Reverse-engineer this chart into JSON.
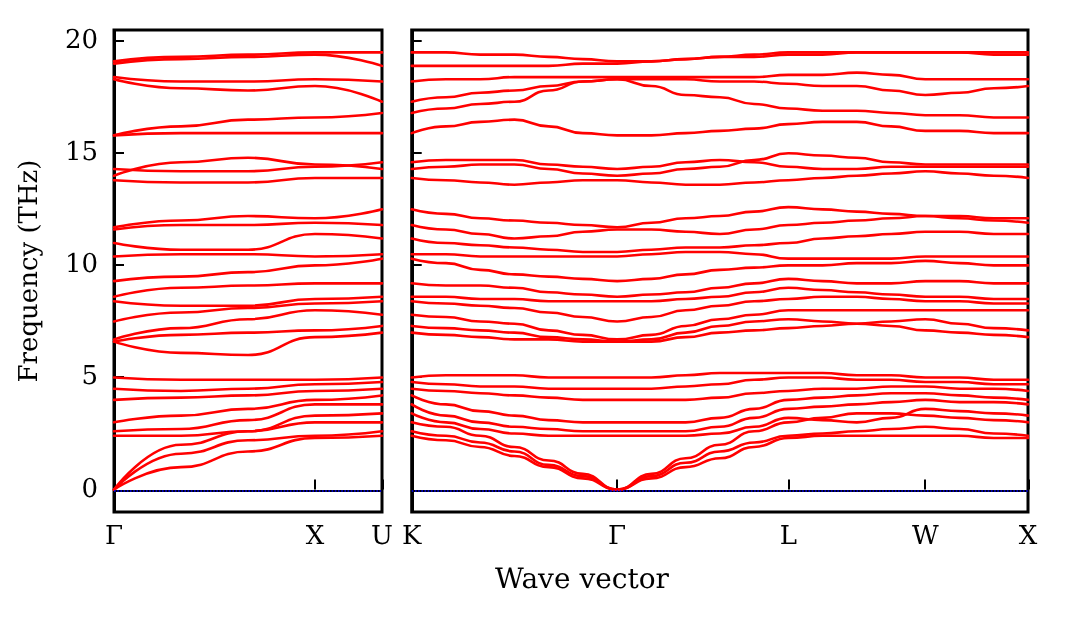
{
  "chart_data": [
    {
      "type": "line",
      "ylabel": "Frequency (THz)",
      "categories": [
        "Γ",
        null,
        null,
        "X",
        "U"
      ],
      "ylim": [
        -1,
        20.5
      ],
      "yticks": [
        0,
        5,
        10,
        15,
        20
      ],
      "grid": false,
      "marker": "none",
      "line_style": "solid",
      "ref_lines": [
        {
          "axis": "y",
          "value": 0,
          "color": "#0000ff",
          "line_style": "dotted"
        }
      ],
      "series": [
        {
          "color": "#ff0000",
          "values": [
            0,
            1.0,
            1.7,
            2.3,
            2.4
          ]
        },
        {
          "color": "#ff0000",
          "values": [
            0,
            1.6,
            2.2,
            2.4,
            2.6
          ]
        },
        {
          "color": "#ff0000",
          "values": [
            0,
            2.0,
            2.6,
            3.0,
            3.0
          ]
        },
        {
          "color": "#ff0000",
          "values": [
            2.4,
            2.4,
            2.6,
            3.3,
            3.4
          ]
        },
        {
          "color": "#ff0000",
          "values": [
            2.6,
            2.7,
            3.1,
            3.8,
            3.8
          ]
        },
        {
          "color": "#ff0000",
          "values": [
            3.0,
            3.3,
            3.6,
            4.0,
            4.2
          ]
        },
        {
          "color": "#ff0000",
          "values": [
            4.0,
            4.1,
            4.2,
            4.4,
            4.5
          ]
        },
        {
          "color": "#ff0000",
          "values": [
            4.5,
            4.4,
            4.5,
            4.7,
            4.8
          ]
        },
        {
          "color": "#ff0000",
          "values": [
            5.0,
            4.9,
            4.9,
            4.9,
            5.0
          ]
        },
        {
          "color": "#ff0000",
          "values": [
            6.6,
            6.1,
            6.0,
            6.8,
            7.0
          ]
        },
        {
          "color": "#ff0000",
          "values": [
            6.6,
            6.9,
            7.0,
            7.1,
            7.3
          ]
        },
        {
          "color": "#ff0000",
          "values": [
            6.7,
            7.2,
            7.6,
            8.0,
            7.8
          ]
        },
        {
          "color": "#ff0000",
          "values": [
            7.5,
            7.9,
            8.1,
            8.3,
            8.4
          ]
        },
        {
          "color": "#ff0000",
          "values": [
            8.4,
            8.2,
            8.2,
            8.5,
            8.6
          ]
        },
        {
          "color": "#ff0000",
          "values": [
            8.6,
            9.0,
            9.1,
            9.2,
            9.2
          ]
        },
        {
          "color": "#ff0000",
          "values": [
            9.3,
            9.5,
            9.7,
            10.0,
            10.3
          ]
        },
        {
          "color": "#ff0000",
          "values": [
            10.4,
            10.5,
            10.5,
            10.4,
            10.5
          ]
        },
        {
          "color": "#ff0000",
          "values": [
            11.0,
            10.7,
            10.7,
            11.4,
            11.2
          ]
        },
        {
          "color": "#ff0000",
          "values": [
            11.6,
            11.8,
            11.8,
            11.9,
            11.8
          ]
        },
        {
          "color": "#ff0000",
          "values": [
            11.7,
            12.0,
            12.2,
            12.1,
            12.5
          ]
        },
        {
          "color": "#ff0000",
          "values": [
            13.8,
            13.7,
            13.7,
            13.9,
            13.9
          ]
        },
        {
          "color": "#ff0000",
          "values": [
            14.0,
            14.6,
            14.8,
            14.5,
            14.3
          ]
        },
        {
          "color": "#ff0000",
          "values": [
            14.3,
            14.2,
            14.2,
            14.4,
            14.6
          ]
        },
        {
          "color": "#ff0000",
          "values": [
            15.8,
            15.9,
            15.9,
            15.9,
            15.9
          ]
        },
        {
          "color": "#ff0000",
          "values": [
            15.8,
            16.2,
            16.5,
            16.6,
            16.8
          ]
        },
        {
          "color": "#ff0000",
          "values": [
            18.3,
            17.9,
            17.8,
            18.0,
            17.3
          ]
        },
        {
          "color": "#ff0000",
          "values": [
            18.4,
            18.2,
            18.2,
            18.3,
            18.2
          ]
        },
        {
          "color": "#ff0000",
          "values": [
            19.0,
            19.2,
            19.3,
            19.4,
            18.9
          ]
        },
        {
          "color": "#ff0000",
          "values": [
            19.1,
            19.3,
            19.4,
            19.5,
            19.5
          ]
        }
      ]
    },
    {
      "type": "line",
      "xlabel": "Wave vector",
      "categories": [
        "K",
        null,
        null,
        null,
        null,
        null,
        "Γ",
        null,
        null,
        null,
        null,
        "L",
        null,
        null,
        null,
        "W",
        null,
        null,
        "X"
      ],
      "ylim": [
        -1,
        20.5
      ],
      "yticks": [
        0,
        5,
        10,
        15,
        20
      ],
      "tick_labels": "x",
      "grid": false,
      "marker": "none",
      "line_style": "solid",
      "ref_lines": [
        {
          "axis": "y",
          "value": 0,
          "color": "#0000ff",
          "line_style": "dotted"
        }
      ],
      "series": [
        {
          "color": "#ff0000",
          "values": [
            2.4,
            2.2,
            1.9,
            1.5,
            1.0,
            0.5,
            0,
            0.5,
            1.0,
            1.4,
            1.9,
            2.3,
            2.4,
            2.4,
            2.4,
            2.4,
            2.4,
            2.3,
            2.3
          ]
        },
        {
          "color": "#ff0000",
          "values": [
            2.6,
            2.4,
            2.1,
            1.7,
            1.1,
            0.6,
            0,
            0.6,
            1.2,
            1.7,
            2.1,
            2.4,
            2.5,
            2.6,
            2.7,
            2.8,
            2.7,
            2.5,
            2.4
          ]
        },
        {
          "color": "#ff0000",
          "values": [
            3.0,
            2.8,
            2.4,
            1.9,
            1.3,
            0.7,
            0,
            0.7,
            1.4,
            2.0,
            2.6,
            3.0,
            3.2,
            3.4,
            3.4,
            3.3,
            3.2,
            3.1,
            3.0
          ]
        },
        {
          "color": "#ff0000",
          "values": [
            3.4,
            3.0,
            2.7,
            2.5,
            2.4,
            2.4,
            2.4,
            2.4,
            2.4,
            2.5,
            2.8,
            3.2,
            3.1,
            3.0,
            3.2,
            3.6,
            3.5,
            3.4,
            3.3
          ]
        },
        {
          "color": "#ff0000",
          "values": [
            3.8,
            3.3,
            3.0,
            2.8,
            2.7,
            2.6,
            2.6,
            2.6,
            2.6,
            2.8,
            3.2,
            3.6,
            3.7,
            3.8,
            3.9,
            4.0,
            3.9,
            3.9,
            3.8
          ]
        },
        {
          "color": "#ff0000",
          "values": [
            4.2,
            3.8,
            3.5,
            3.3,
            3.1,
            3.0,
            3.0,
            3.0,
            3.0,
            3.2,
            3.6,
            4.0,
            4.1,
            4.2,
            4.3,
            4.3,
            4.2,
            4.1,
            4.0
          ]
        },
        {
          "color": "#ff0000",
          "values": [
            4.5,
            4.4,
            4.3,
            4.2,
            4.1,
            4.0,
            4.0,
            4.0,
            4.0,
            4.1,
            4.3,
            4.4,
            4.5,
            4.5,
            4.6,
            4.6,
            4.5,
            4.5,
            4.4
          ]
        },
        {
          "color": "#ff0000",
          "values": [
            4.8,
            4.7,
            4.6,
            4.6,
            4.5,
            4.5,
            4.5,
            4.5,
            4.6,
            4.7,
            4.9,
            5.0,
            5.0,
            4.9,
            4.9,
            4.8,
            4.8,
            4.7,
            4.7
          ]
        },
        {
          "color": "#ff0000",
          "values": [
            5.0,
            5.1,
            5.1,
            5.1,
            5.0,
            5.0,
            5.0,
            5.0,
            5.1,
            5.2,
            5.2,
            5.2,
            5.2,
            5.1,
            5.1,
            5.0,
            5.0,
            4.9,
            4.9
          ]
        },
        {
          "color": "#ff0000",
          "values": [
            7.0,
            6.9,
            6.8,
            6.7,
            6.7,
            6.6,
            6.6,
            6.6,
            6.8,
            7.0,
            7.1,
            7.2,
            7.3,
            7.4,
            7.3,
            7.1,
            7.0,
            6.9,
            6.8
          ]
        },
        {
          "color": "#ff0000",
          "values": [
            7.3,
            7.2,
            7.1,
            7.0,
            6.8,
            6.7,
            6.6,
            6.7,
            7.0,
            7.3,
            7.5,
            7.6,
            7.5,
            7.4,
            7.5,
            7.6,
            7.4,
            7.2,
            7.1
          ]
        },
        {
          "color": "#ff0000",
          "values": [
            7.8,
            7.7,
            7.5,
            7.4,
            7.1,
            6.9,
            6.7,
            6.9,
            7.3,
            7.6,
            7.8,
            8.0,
            8.0,
            8.0,
            8.0,
            8.0,
            8.0,
            8.0,
            8.0
          ]
        },
        {
          "color": "#ff0000",
          "values": [
            8.4,
            8.3,
            8.2,
            8.1,
            7.9,
            7.7,
            7.5,
            7.7,
            8.0,
            8.2,
            8.4,
            8.5,
            8.6,
            8.6,
            8.5,
            8.4,
            8.4,
            8.3,
            8.3
          ]
        },
        {
          "color": "#ff0000",
          "values": [
            8.6,
            8.6,
            8.5,
            8.5,
            8.4,
            8.4,
            8.4,
            8.4,
            8.5,
            8.6,
            8.8,
            9.0,
            8.9,
            8.8,
            8.7,
            8.6,
            8.6,
            8.5,
            8.5
          ]
        },
        {
          "color": "#ff0000",
          "values": [
            9.2,
            9.1,
            9.1,
            9.0,
            8.8,
            8.7,
            8.6,
            8.7,
            8.8,
            9.0,
            9.2,
            9.4,
            9.3,
            9.2,
            9.2,
            9.3,
            9.3,
            9.2,
            9.2
          ]
        },
        {
          "color": "#ff0000",
          "values": [
            10.3,
            10.1,
            9.8,
            9.6,
            9.5,
            9.4,
            9.3,
            9.4,
            9.6,
            9.8,
            9.9,
            10.0,
            10.0,
            10.1,
            10.1,
            10.2,
            10.1,
            10.0,
            10.0
          ]
        },
        {
          "color": "#ff0000",
          "values": [
            10.5,
            10.5,
            10.4,
            10.4,
            10.4,
            10.4,
            10.4,
            10.5,
            10.6,
            10.6,
            10.5,
            10.3,
            10.3,
            10.3,
            10.3,
            10.4,
            10.4,
            10.4,
            10.4
          ]
        },
        {
          "color": "#ff0000",
          "values": [
            11.2,
            11.0,
            10.9,
            10.8,
            10.7,
            10.6,
            10.6,
            10.7,
            10.8,
            10.8,
            10.9,
            11.0,
            11.2,
            11.3,
            11.4,
            11.5,
            11.5,
            11.4,
            11.4
          ]
        },
        {
          "color": "#ff0000",
          "values": [
            11.8,
            11.6,
            11.4,
            11.2,
            11.3,
            11.5,
            11.6,
            11.6,
            11.5,
            11.4,
            11.6,
            11.8,
            11.9,
            12.0,
            12.1,
            12.2,
            12.1,
            12.0,
            11.9
          ]
        },
        {
          "color": "#ff0000",
          "values": [
            12.5,
            12.3,
            12.1,
            12.0,
            11.9,
            11.8,
            11.7,
            11.9,
            12.1,
            12.2,
            12.4,
            12.6,
            12.5,
            12.4,
            12.3,
            12.2,
            12.2,
            12.1,
            12.1
          ]
        },
        {
          "color": "#ff0000",
          "values": [
            13.9,
            13.8,
            13.7,
            13.6,
            13.7,
            13.8,
            13.8,
            13.7,
            13.6,
            13.6,
            13.7,
            13.8,
            13.9,
            14.0,
            14.1,
            14.2,
            14.1,
            14.0,
            13.9
          ]
        },
        {
          "color": "#ff0000",
          "values": [
            14.3,
            14.4,
            14.5,
            14.5,
            14.3,
            14.1,
            14.0,
            14.1,
            14.3,
            14.4,
            14.7,
            15.0,
            14.9,
            14.8,
            14.6,
            14.5,
            14.5,
            14.5,
            14.5
          ]
        },
        {
          "color": "#ff0000",
          "values": [
            14.6,
            14.7,
            14.7,
            14.7,
            14.5,
            14.4,
            14.3,
            14.4,
            14.6,
            14.7,
            14.6,
            14.4,
            14.3,
            14.3,
            14.4,
            14.4,
            14.4,
            14.4,
            14.4
          ]
        },
        {
          "color": "#ff0000",
          "values": [
            15.9,
            16.2,
            16.4,
            16.5,
            16.2,
            15.9,
            15.8,
            15.8,
            15.9,
            16.0,
            16.1,
            16.3,
            16.4,
            16.4,
            16.2,
            16.0,
            16.0,
            15.9,
            15.9
          ]
        },
        {
          "color": "#ff0000",
          "values": [
            16.8,
            17.0,
            17.2,
            17.3,
            17.8,
            18.2,
            18.3,
            18.0,
            17.6,
            17.5,
            17.2,
            17.0,
            16.9,
            16.9,
            16.8,
            16.7,
            16.7,
            16.6,
            16.6
          ]
        },
        {
          "color": "#ff0000",
          "values": [
            17.3,
            17.5,
            17.7,
            17.8,
            18.0,
            18.2,
            18.3,
            18.3,
            18.3,
            18.2,
            18.2,
            18.1,
            18.0,
            18.0,
            17.8,
            17.6,
            17.7,
            17.9,
            18.0
          ]
        },
        {
          "color": "#ff0000",
          "values": [
            18.2,
            18.3,
            18.3,
            18.4,
            18.4,
            18.4,
            18.4,
            18.4,
            18.4,
            18.4,
            18.4,
            18.5,
            18.5,
            18.6,
            18.5,
            18.3,
            18.3,
            18.3,
            18.3
          ]
        },
        {
          "color": "#ff0000",
          "values": [
            18.9,
            18.9,
            18.9,
            18.9,
            18.9,
            19.0,
            19.0,
            19.1,
            19.2,
            19.3,
            19.3,
            19.4,
            19.4,
            19.5,
            19.5,
            19.5,
            19.5,
            19.4,
            19.4
          ]
        },
        {
          "color": "#ff0000",
          "values": [
            19.5,
            19.5,
            19.4,
            19.4,
            19.3,
            19.2,
            19.1,
            19.1,
            19.2,
            19.3,
            19.4,
            19.5,
            19.5,
            19.5,
            19.5,
            19.5,
            19.5,
            19.5,
            19.5
          ]
        }
      ]
    }
  ]
}
